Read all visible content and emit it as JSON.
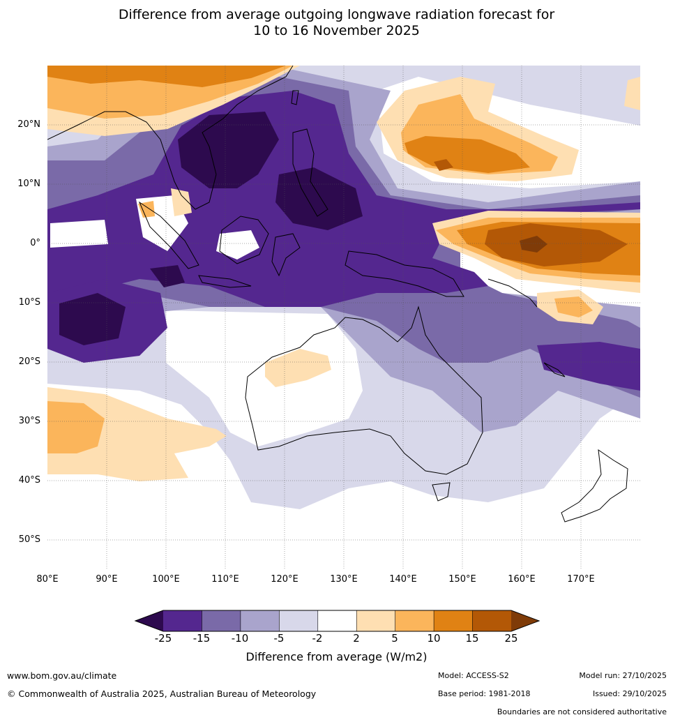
{
  "title": {
    "line1": "Difference from average outgoing longwave radiation forecast for",
    "line2": "10 to 16 November 2025"
  },
  "map": {
    "lat_labels": [
      "20°N",
      "10°N",
      "0°",
      "10°S",
      "20°S",
      "30°S",
      "40°S",
      "50°S"
    ],
    "lon_labels": [
      "80°E",
      "90°E",
      "100°E",
      "110°E",
      "120°E",
      "130°E",
      "140°E",
      "150°E",
      "160°E",
      "170°E"
    ],
    "extent": {
      "lon_min": 80,
      "lon_max": 180,
      "lat_min": -55,
      "lat_max": 30
    }
  },
  "colorbar": {
    "ticks": [
      "-25",
      "-15",
      "-10",
      "-5",
      "-2",
      "2",
      "5",
      "10",
      "15",
      "25"
    ],
    "colors": [
      "#2d0a4e",
      "#54278f",
      "#7a6aa8",
      "#a9a4cc",
      "#d8d8ea",
      "#ffffff",
      "#fedfb2",
      "#fbb55b",
      "#e08214",
      "#b35806",
      "#7f3b08"
    ],
    "title": "Difference from average (W/m2)"
  },
  "footer": {
    "website": "www.bom.gov.au/climate",
    "copyright": "© Commonwealth of Australia 2025, Australian Bureau of Meteorology",
    "model": "Model: ACCESS-S2",
    "base_period": "Base period: 1981-2018",
    "model_run": "Model run: 27/10/2025",
    "issued": "Issued: 29/10/2025",
    "disclaimer": "Boundaries are not considered authoritative"
  }
}
